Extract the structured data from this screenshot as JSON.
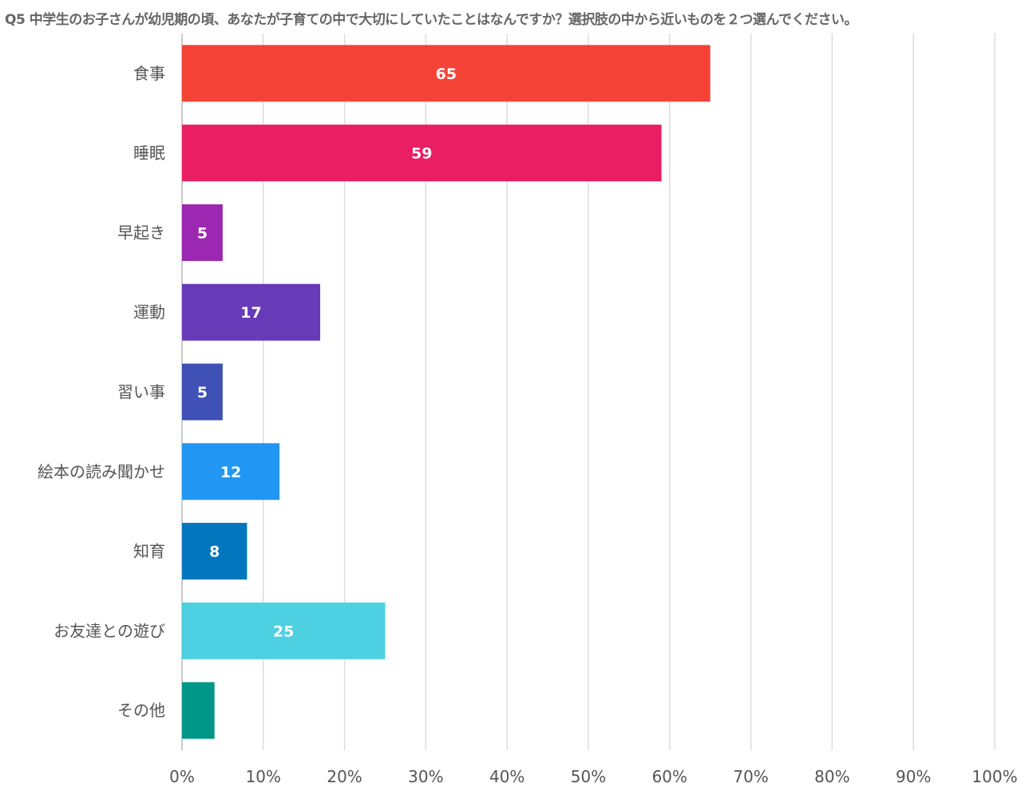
{
  "chart_data": {
    "type": "bar",
    "orientation": "horizontal",
    "title": "Q5 中学生のお子さんが幼児期の頃、あなたが子育ての中で大切にしていたことはなんですか？選択肢の中から近いものを２つ選んでください。",
    "categories": [
      "食事",
      "睡眠",
      "早起き",
      "運動",
      "習い事",
      "絵本の読み聞かせ",
      "知育",
      "お友達との遊び",
      "その他"
    ],
    "values": [
      65,
      59,
      5,
      17,
      5,
      12,
      8,
      25,
      4
    ],
    "data_labels": [
      "65",
      "59",
      "5",
      "17",
      "5",
      "12",
      "8",
      "25",
      ""
    ],
    "colors": [
      "#f44336",
      "#e91e63",
      "#9c27b0",
      "#673ab7",
      "#3f51b5",
      "#2196f3",
      "#0277bd",
      "#4dd0e1",
      "#009688"
    ],
    "xlim": [
      0,
      100
    ],
    "xticks": [
      "0%",
      "10%",
      "20%",
      "30%",
      "40%",
      "50%",
      "60%",
      "70%",
      "80%",
      "90%",
      "100%"
    ],
    "grid": true,
    "legend": false
  }
}
